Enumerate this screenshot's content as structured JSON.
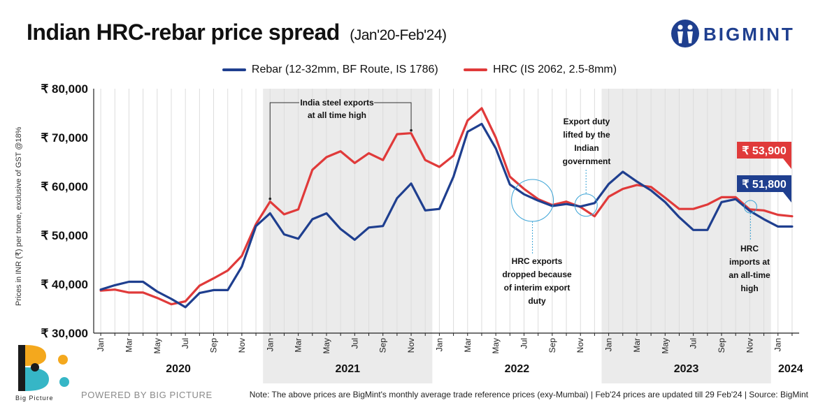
{
  "header": {
    "title": "Indian HRC-rebar price spread",
    "subtitle": "(Jan'20-Feb'24)",
    "brand": "BIGMINT"
  },
  "footer": {
    "powered_by": "POWERED BY BIG PICTURE",
    "big_picture": "Big Picture",
    "note": "Note: The above prices are BigMint's monthly average trade reference prices (exy-Mumbai)  |  Feb'24 prices are updated till 29 Feb'24  |  Source: BigMint"
  },
  "colors": {
    "rebar": "#1f3f8f",
    "hrc": "#e03a3a",
    "shade": "#ebebeb"
  },
  "chart_data": {
    "type": "line",
    "ylabel": "Prices in INR (₹) per tonne, exclusive of GST @18%",
    "xlabel": "",
    "ylim": [
      30000,
      80000
    ],
    "y_ticks": [
      "₹ 30,000",
      "₹ 40,000",
      "₹ 50,000",
      "₹ 60,000",
      "₹ 70,000",
      "₹ 80,000"
    ],
    "grid": "vertical",
    "legend_position": "top-center",
    "x": [
      "Jan'20",
      "Feb'20",
      "Mar'20",
      "Apr'20",
      "May'20",
      "Jun'20",
      "Jul'20",
      "Aug'20",
      "Sep'20",
      "Oct'20",
      "Nov'20",
      "Dec'20",
      "Jan'21",
      "Feb'21",
      "Mar'21",
      "Apr'21",
      "May'21",
      "Jun'21",
      "Jul'21",
      "Aug'21",
      "Sep'21",
      "Oct'21",
      "Nov'21",
      "Dec'21",
      "Jan'22",
      "Feb'22",
      "Mar'22",
      "Apr'22",
      "May'22",
      "Jun'22",
      "Jul'22",
      "Aug'22",
      "Sep'22",
      "Oct'22",
      "Nov'22",
      "Dec'22",
      "Jan'23",
      "Feb'23",
      "Mar'23",
      "Apr'23",
      "May'23",
      "Jun'23",
      "Jul'23",
      "Aug'23",
      "Sep'23",
      "Oct'23",
      "Nov'23",
      "Dec'23",
      "Jan'24",
      "Feb'24"
    ],
    "x_tick_labels": [
      "Jan",
      "",
      "Mar",
      "",
      "May",
      "",
      "Jul",
      "",
      "Sep",
      "",
      "Nov",
      "",
      "Jan",
      "",
      "Mar",
      "",
      "May",
      "",
      "Jul",
      "",
      "Sep",
      "",
      "Nov",
      "",
      "Jan",
      "",
      "Mar",
      "",
      "May",
      "",
      "Jul",
      "",
      "Sep",
      "",
      "Nov",
      "",
      "Jan",
      "",
      "Mar",
      "",
      "May",
      "",
      "Jul",
      "",
      "Sep",
      "",
      "Nov",
      "",
      "Jan",
      ""
    ],
    "years": [
      "2020",
      "2021",
      "2022",
      "2023",
      "2024"
    ],
    "shaded_years": [
      "2021",
      "2023"
    ],
    "series": [
      {
        "name": "Rebar (12-32mm, BF Route, IS 1786)",
        "color": "#1f3f8f",
        "values": [
          38900,
          39800,
          40500,
          40500,
          38500,
          37000,
          35300,
          38200,
          38800,
          38800,
          43600,
          51900,
          54500,
          50200,
          49300,
          53300,
          54500,
          51300,
          49100,
          51600,
          51900,
          57600,
          60600,
          55100,
          55400,
          62000,
          71200,
          72800,
          67800,
          60400,
          58400,
          57100,
          56000,
          56400,
          55900,
          56600,
          60500,
          63000,
          61000,
          59200,
          56800,
          53700,
          51100,
          51100,
          56800,
          57400,
          55000,
          53300,
          51800,
          51800
        ]
      },
      {
        "name": "HRC (IS 2062, 2.5-8mm)",
        "color": "#e03a3a",
        "values": [
          38700,
          38900,
          38300,
          38300,
          37200,
          35900,
          36500,
          39700,
          41200,
          42800,
          45800,
          52300,
          56900,
          54300,
          55300,
          63400,
          66000,
          67200,
          64800,
          66800,
          65400,
          70700,
          70900,
          65400,
          64000,
          66300,
          73500,
          76000,
          70000,
          62000,
          59500,
          57400,
          56200,
          56900,
          55800,
          53900,
          57900,
          59500,
          60300,
          59900,
          57700,
          55400,
          55400,
          56300,
          57800,
          57800,
          55300,
          55100,
          54200,
          53900
        ]
      }
    ],
    "end_labels": [
      {
        "series": "HRC (IS 2062, 2.5-8mm)",
        "text": "₹ 53,900"
      },
      {
        "series": "Rebar (12-32mm, BF Route, IS 1786)",
        "text": "₹ 51,800"
      }
    ],
    "annotations": [
      {
        "text": [
          "India steel exports",
          "at all time high"
        ],
        "points": [
          "Jan'21",
          "Nov'21"
        ]
      },
      {
        "text": [
          "Export duty",
          "lifted by the",
          "Indian",
          "government"
        ],
        "point": "Nov'22"
      },
      {
        "text": [
          "HRC exports",
          "dropped because",
          "of interim export",
          "duty"
        ],
        "point": "Jul'22-Aug'22"
      },
      {
        "text": [
          "HRC",
          "imports at",
          "an all-time",
          "high"
        ],
        "point": "Nov'23"
      }
    ]
  }
}
